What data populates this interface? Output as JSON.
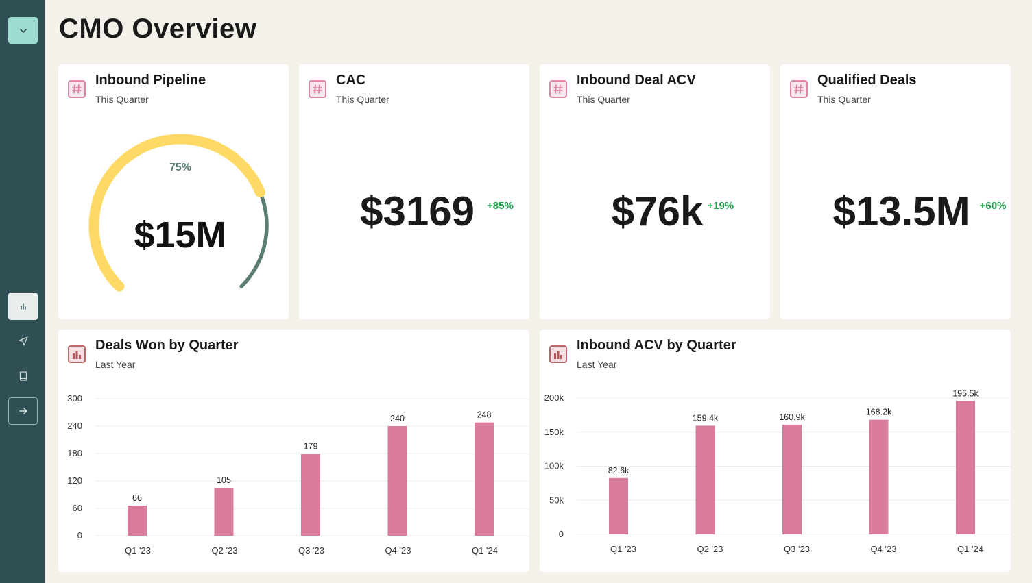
{
  "page": {
    "title": "CMO Overview"
  },
  "sidebar": {
    "items": [
      {
        "icon": "chevron-down-icon"
      },
      {
        "icon": "bar-chart-icon"
      },
      {
        "icon": "send-icon"
      },
      {
        "icon": "book-icon"
      },
      {
        "icon": "arrow-right-icon"
      }
    ]
  },
  "colors": {
    "sidebar": "#2f4f55",
    "accent": "#9fdcd0",
    "gauge_fill": "#ffd966",
    "gauge_rest": "#5a7d74",
    "bar": "#d97c99",
    "positive": "#1f9d4a"
  },
  "cards": {
    "pipeline": {
      "title": "Inbound Pipeline",
      "subtitle": "This Quarter",
      "value": "$15M",
      "percent_label": "75%",
      "progress": 0.75
    },
    "cac": {
      "title": "CAC",
      "subtitle": "This Quarter",
      "value": "$3169",
      "delta": "+85%"
    },
    "acv": {
      "title": "Inbound Deal ACV",
      "subtitle": "This Quarter",
      "value": "$76k",
      "delta": "+19%"
    },
    "qualified": {
      "title": "Qualified Deals",
      "subtitle": "This Quarter",
      "value": "$13.5M",
      "delta": "+60%"
    },
    "deals_won": {
      "title": "Deals Won by Quarter",
      "subtitle": "Last Year"
    },
    "inbound_acv": {
      "title": "Inbound ACV by Quarter",
      "subtitle": "Last Year"
    }
  },
  "chart_data": [
    {
      "type": "bar",
      "title": "Deals Won by Quarter",
      "categories": [
        "Q1 '23",
        "Q2 '23",
        "Q3 '23",
        "Q4 '23",
        "Q1 '24"
      ],
      "values": [
        66,
        105,
        179,
        240,
        248
      ],
      "value_labels": [
        "66",
        "105",
        "179",
        "240",
        "248"
      ],
      "yticks": [
        "0",
        "60",
        "120",
        "180",
        "240",
        "300"
      ],
      "ylim": [
        0,
        300
      ],
      "grid": true
    },
    {
      "type": "bar",
      "title": "Inbound ACV by Quarter",
      "categories": [
        "Q1 '23",
        "Q2 '23",
        "Q3 '23",
        "Q4 '23",
        "Q1 '24"
      ],
      "values": [
        82600,
        159400,
        160900,
        168200,
        195500
      ],
      "value_labels": [
        "82.6k",
        "159.4k",
        "160.9k",
        "168.2k",
        "195.5k"
      ],
      "yticks": [
        "0",
        "50k",
        "100k",
        "150k",
        "200k"
      ],
      "ylim": [
        0,
        200000
      ],
      "grid": true
    }
  ]
}
